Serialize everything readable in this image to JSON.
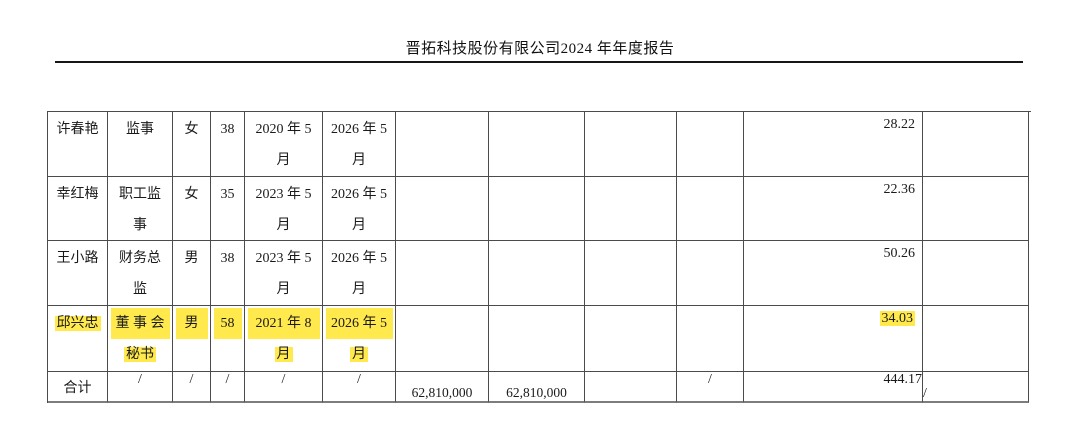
{
  "header": {
    "title": "晋拓科技股份有限公司2024 年年度报告"
  },
  "highlight_color": "#ffe94d",
  "table": {
    "rows": [
      {
        "name": "许春艳",
        "position1": "监事",
        "position2": "",
        "gender": "女",
        "age": "38",
        "start1": "2020 年 5",
        "start2": "月",
        "end1": "2026 年 5",
        "end2": "月",
        "pay": "28.22",
        "highlighted": false
      },
      {
        "name": "幸红梅",
        "position1": "职工监",
        "position2": "事",
        "gender": "女",
        "age": "35",
        "start1": "2023 年 5",
        "start2": "月",
        "end1": "2026 年 5",
        "end2": "月",
        "pay": "22.36",
        "highlighted": false
      },
      {
        "name": "王小路",
        "position1": "财务总",
        "position2": "监",
        "gender": "男",
        "age": "38",
        "start1": "2023 年 5",
        "start2": "月",
        "end1": "2026 年 5",
        "end2": "月",
        "pay": "50.26",
        "highlighted": false
      },
      {
        "name": "邱兴忠",
        "position1": "董 事 会",
        "position2": "秘书",
        "gender": "男",
        "age": "58",
        "start1": "2021 年 8",
        "start2": "月",
        "end1": "2026 年 5",
        "end2": "月",
        "pay": "34.03",
        "highlighted": true
      }
    ],
    "total_row": {
      "label": "合计",
      "slash2": "/",
      "slash3": "/",
      "slash4": "/",
      "slash5": "/",
      "slash6": "/",
      "shares_before": "62,810,000",
      "shares_after": "62,810,000",
      "slash10": "/",
      "pay_total": "444.17",
      "slash12": "/"
    }
  }
}
